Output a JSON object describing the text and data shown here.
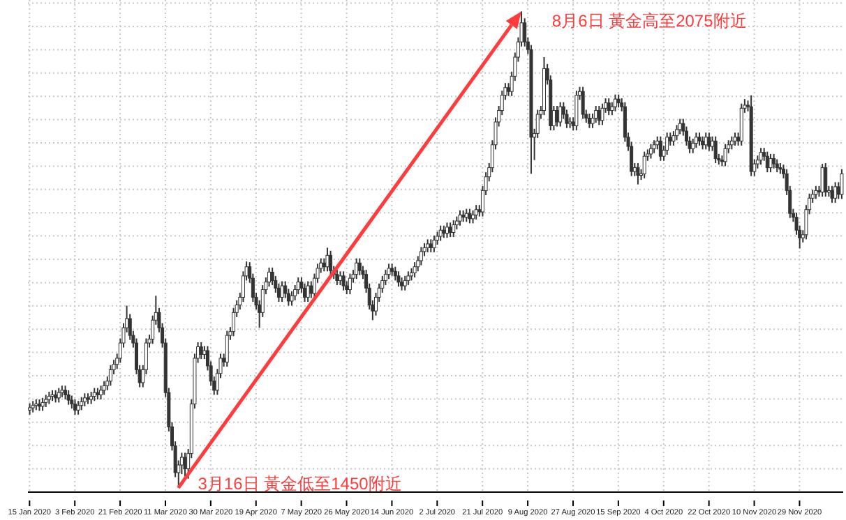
{
  "chart_data": {
    "type": "candlestick",
    "color": "#333333",
    "grid": true,
    "tick_labels": "x",
    "annotations": [
      "8月6日 黃金高至2075附近",
      "3月16日 黃金低至1450附近"
    ],
    "categories": [
      "15 Jan 2020",
      null,
      null,
      null,
      null,
      null,
      null,
      null,
      null,
      null,
      null,
      null,
      null,
      null,
      "3 Feb 2020",
      null,
      null,
      null,
      null,
      null,
      null,
      null,
      null,
      null,
      null,
      null,
      null,
      null,
      "21 Feb 2020",
      null,
      null,
      null,
      null,
      null,
      null,
      null,
      null,
      null,
      null,
      null,
      null,
      null,
      "11 Mar 2020",
      null,
      null,
      null,
      null,
      null,
      null,
      null,
      null,
      null,
      null,
      null,
      null,
      null,
      "30 Mar 2020",
      null,
      null,
      null,
      null,
      null,
      null,
      null,
      null,
      null,
      null,
      null,
      null,
      null,
      "19 Apr 2020",
      null,
      null,
      null,
      null,
      null,
      null,
      null,
      null,
      null,
      null,
      null,
      null,
      null,
      "7 May 2020",
      null,
      null,
      null,
      null,
      null,
      null,
      null,
      null,
      null,
      null,
      null,
      null,
      null,
      "26 May 2020",
      null,
      null,
      null,
      null,
      null,
      null,
      null,
      null,
      null,
      null,
      null,
      null,
      null,
      "14 Jun 2020",
      null,
      null,
      null,
      null,
      null,
      null,
      null,
      null,
      null,
      null,
      null,
      null,
      null,
      "2 Jul 2020",
      null,
      null,
      null,
      null,
      null,
      null,
      null,
      null,
      null,
      null,
      null,
      null,
      null,
      "21 Jul 2020",
      null,
      null,
      null,
      null,
      null,
      null,
      null,
      null,
      null,
      null,
      null,
      null,
      null,
      "9 Aug 2020",
      null,
      null,
      null,
      null,
      null,
      null,
      null,
      null,
      null,
      null,
      null,
      null,
      null,
      "27 Aug 2020",
      null,
      null,
      null,
      null,
      null,
      null,
      null,
      null,
      null,
      null,
      null,
      null,
      null,
      "15 Sep 2020",
      null,
      null,
      null,
      null,
      null,
      null,
      null,
      null,
      null,
      null,
      null,
      null,
      null,
      "4 Oct 2020",
      null,
      null,
      null,
      null,
      null,
      null,
      null,
      null,
      null,
      null,
      null,
      null,
      null,
      "22 Oct 2020",
      null,
      null,
      null,
      null,
      null,
      null,
      null,
      null,
      null,
      null,
      null,
      null,
      null,
      "10 Nov 2020",
      null,
      null,
      null,
      null,
      null,
      null,
      null,
      null,
      null,
      null,
      null,
      null,
      null,
      "29 Nov 2020",
      null,
      null,
      null,
      null,
      null,
      null,
      null,
      null,
      null,
      null,
      null,
      null,
      null
    ],
    "ohlc": [
      [
        1552,
        1561,
        1546,
        1555
      ],
      [
        1555,
        1564,
        1549,
        1558
      ],
      [
        1558,
        1566,
        1552,
        1560
      ],
      [
        1560,
        1566,
        1551,
        1557
      ],
      [
        1557,
        1568,
        1551,
        1562
      ],
      [
        1562,
        1572,
        1556,
        1566
      ],
      [
        1566,
        1576,
        1560,
        1570
      ],
      [
        1570,
        1578,
        1564,
        1572
      ],
      [
        1572,
        1578,
        1562,
        1568
      ],
      [
        1568,
        1581,
        1562,
        1575
      ],
      [
        1575,
        1584,
        1569,
        1578
      ],
      [
        1578,
        1584,
        1566,
        1572
      ],
      [
        1572,
        1578,
        1559,
        1565
      ],
      [
        1565,
        1571,
        1554,
        1560
      ],
      [
        1560,
        1566,
        1546,
        1552
      ],
      [
        1552,
        1564,
        1546,
        1558
      ],
      [
        1558,
        1569,
        1552,
        1563
      ],
      [
        1563,
        1574,
        1557,
        1568
      ],
      [
        1568,
        1574,
        1560,
        1566
      ],
      [
        1566,
        1576,
        1560,
        1570
      ],
      [
        1570,
        1581,
        1564,
        1575
      ],
      [
        1575,
        1581,
        1566,
        1572
      ],
      [
        1572,
        1584,
        1566,
        1578
      ],
      [
        1578,
        1590,
        1572,
        1584
      ],
      [
        1584,
        1596,
        1578,
        1590
      ],
      [
        1590,
        1611,
        1584,
        1605
      ],
      [
        1605,
        1618,
        1599,
        1612
      ],
      [
        1612,
        1626,
        1606,
        1620
      ],
      [
        1620,
        1646,
        1614,
        1640
      ],
      [
        1640,
        1666,
        1634,
        1660
      ],
      [
        1660,
        1689,
        1654,
        1672
      ],
      [
        1672,
        1678,
        1644,
        1650
      ],
      [
        1650,
        1656,
        1634,
        1640
      ],
      [
        1640,
        1646,
        1599,
        1605
      ],
      [
        1605,
        1611,
        1582,
        1588
      ],
      [
        1588,
        1611,
        1582,
        1605
      ],
      [
        1605,
        1646,
        1599,
        1640
      ],
      [
        1640,
        1651,
        1634,
        1645
      ],
      [
        1645,
        1676,
        1639,
        1670
      ],
      [
        1670,
        1702,
        1664,
        1680
      ],
      [
        1680,
        1686,
        1654,
        1660
      ],
      [
        1660,
        1666,
        1634,
        1640
      ],
      [
        1640,
        1646,
        1569,
        1575
      ],
      [
        1575,
        1581,
        1524,
        1530
      ],
      [
        1530,
        1536,
        1499,
        1505
      ],
      [
        1505,
        1511,
        1464,
        1470
      ],
      [
        1470,
        1486,
        1450,
        1480
      ],
      [
        1480,
        1496,
        1468,
        1490
      ],
      [
        1490,
        1496,
        1465,
        1475
      ],
      [
        1475,
        1501,
        1462,
        1495
      ],
      [
        1495,
        1566,
        1489,
        1560
      ],
      [
        1560,
        1626,
        1554,
        1620
      ],
      [
        1620,
        1641,
        1614,
        1635
      ],
      [
        1635,
        1641,
        1619,
        1625
      ],
      [
        1625,
        1636,
        1619,
        1630
      ],
      [
        1630,
        1636,
        1604,
        1610
      ],
      [
        1610,
        1616,
        1584,
        1590
      ],
      [
        1590,
        1596,
        1572,
        1578
      ],
      [
        1578,
        1606,
        1572,
        1600
      ],
      [
        1600,
        1626,
        1594,
        1620
      ],
      [
        1620,
        1626,
        1609,
        1615
      ],
      [
        1615,
        1656,
        1609,
        1650
      ],
      [
        1650,
        1661,
        1644,
        1655
      ],
      [
        1655,
        1686,
        1649,
        1680
      ],
      [
        1680,
        1696,
        1674,
        1690
      ],
      [
        1690,
        1706,
        1684,
        1700
      ],
      [
        1700,
        1734,
        1694,
        1728
      ],
      [
        1728,
        1747,
        1722,
        1740
      ],
      [
        1740,
        1746,
        1719,
        1725
      ],
      [
        1725,
        1731,
        1694,
        1700
      ],
      [
        1700,
        1706,
        1684,
        1690
      ],
      [
        1690,
        1696,
        1660,
        1680
      ],
      [
        1680,
        1716,
        1674,
        1710
      ],
      [
        1710,
        1726,
        1704,
        1720
      ],
      [
        1720,
        1739,
        1714,
        1733
      ],
      [
        1733,
        1739,
        1716,
        1722
      ],
      [
        1722,
        1728,
        1706,
        1712
      ],
      [
        1712,
        1718,
        1694,
        1700
      ],
      [
        1700,
        1721,
        1694,
        1715
      ],
      [
        1715,
        1721,
        1699,
        1705
      ],
      [
        1705,
        1711,
        1689,
        1695
      ],
      [
        1695,
        1708,
        1689,
        1702
      ],
      [
        1702,
        1716,
        1696,
        1710
      ],
      [
        1710,
        1726,
        1704,
        1720
      ],
      [
        1720,
        1726,
        1706,
        1712
      ],
      [
        1712,
        1718,
        1694,
        1700
      ],
      [
        1700,
        1721,
        1694,
        1715
      ],
      [
        1715,
        1721,
        1699,
        1705
      ],
      [
        1705,
        1731,
        1699,
        1725
      ],
      [
        1725,
        1744,
        1719,
        1738
      ],
      [
        1738,
        1751,
        1732,
        1745
      ],
      [
        1745,
        1751,
        1734,
        1740
      ],
      [
        1740,
        1765,
        1734,
        1755
      ],
      [
        1755,
        1761,
        1729,
        1735
      ],
      [
        1735,
        1741,
        1724,
        1730
      ],
      [
        1730,
        1736,
        1716,
        1722
      ],
      [
        1722,
        1734,
        1716,
        1728
      ],
      [
        1728,
        1734,
        1709,
        1715
      ],
      [
        1715,
        1721,
        1704,
        1710
      ],
      [
        1710,
        1731,
        1704,
        1725
      ],
      [
        1725,
        1736,
        1719,
        1730
      ],
      [
        1730,
        1751,
        1724,
        1745
      ],
      [
        1745,
        1751,
        1729,
        1735
      ],
      [
        1735,
        1741,
        1724,
        1730
      ],
      [
        1730,
        1736,
        1706,
        1712
      ],
      [
        1712,
        1718,
        1684,
        1690
      ],
      [
        1690,
        1696,
        1670,
        1682
      ],
      [
        1682,
        1706,
        1676,
        1700
      ],
      [
        1700,
        1718,
        1694,
        1712
      ],
      [
        1712,
        1728,
        1706,
        1722
      ],
      [
        1722,
        1736,
        1716,
        1730
      ],
      [
        1730,
        1744,
        1724,
        1738
      ],
      [
        1738,
        1744,
        1728,
        1734
      ],
      [
        1734,
        1740,
        1722,
        1728
      ],
      [
        1728,
        1734,
        1714,
        1720
      ],
      [
        1720,
        1726,
        1709,
        1715
      ],
      [
        1715,
        1728,
        1709,
        1722
      ],
      [
        1722,
        1734,
        1716,
        1728
      ],
      [
        1728,
        1738,
        1722,
        1732
      ],
      [
        1732,
        1746,
        1726,
        1740
      ],
      [
        1740,
        1754,
        1734,
        1748
      ],
      [
        1748,
        1766,
        1742,
        1760
      ],
      [
        1760,
        1771,
        1754,
        1765
      ],
      [
        1765,
        1776,
        1759,
        1770
      ],
      [
        1770,
        1776,
        1759,
        1765
      ],
      [
        1765,
        1781,
        1759,
        1775
      ],
      [
        1775,
        1786,
        1769,
        1780
      ],
      [
        1780,
        1794,
        1774,
        1788
      ],
      [
        1788,
        1794,
        1778,
        1784
      ],
      [
        1784,
        1798,
        1778,
        1792
      ],
      [
        1792,
        1798,
        1779,
        1785
      ],
      [
        1785,
        1801,
        1779,
        1795
      ],
      [
        1795,
        1806,
        1789,
        1800
      ],
      [
        1800,
        1814,
        1794,
        1808
      ],
      [
        1808,
        1814,
        1799,
        1805
      ],
      [
        1805,
        1816,
        1799,
        1810
      ],
      [
        1810,
        1816,
        1797,
        1803
      ],
      [
        1803,
        1814,
        1797,
        1808
      ],
      [
        1808,
        1821,
        1802,
        1815
      ],
      [
        1815,
        1821,
        1806,
        1812
      ],
      [
        1812,
        1846,
        1806,
        1840
      ],
      [
        1840,
        1864,
        1834,
        1858
      ],
      [
        1858,
        1876,
        1852,
        1870
      ],
      [
        1870,
        1906,
        1864,
        1900
      ],
      [
        1900,
        1936,
        1894,
        1930
      ],
      [
        1930,
        1951,
        1924,
        1945
      ],
      [
        1945,
        1971,
        1939,
        1965
      ],
      [
        1965,
        1981,
        1959,
        1975
      ],
      [
        1975,
        1981,
        1964,
        1970
      ],
      [
        1970,
        1996,
        1964,
        1990
      ],
      [
        1990,
        2021,
        1984,
        2015
      ],
      [
        2015,
        2041,
        2009,
        2035
      ],
      [
        2035,
        2075,
        2029,
        2060
      ],
      [
        2060,
        2066,
        2029,
        2035
      ],
      [
        2035,
        2041,
        2019,
        2025
      ],
      [
        2025,
        2031,
        1862,
        1910
      ],
      [
        1910,
        1921,
        1880,
        1915
      ],
      [
        1915,
        1946,
        1909,
        1940
      ],
      [
        1940,
        1951,
        1934,
        1945
      ],
      [
        1945,
        2015,
        1939,
        2000
      ],
      [
        2000,
        2006,
        1979,
        1985
      ],
      [
        1985,
        1991,
        1919,
        1925
      ],
      [
        1925,
        1951,
        1919,
        1945
      ],
      [
        1945,
        1951,
        1924,
        1930
      ],
      [
        1930,
        1956,
        1924,
        1950
      ],
      [
        1950,
        1956,
        1934,
        1940
      ],
      [
        1940,
        1946,
        1922,
        1928
      ],
      [
        1928,
        1936,
        1922,
        1930
      ],
      [
        1930,
        1936,
        1919,
        1925
      ],
      [
        1925,
        1971,
        1919,
        1965
      ],
      [
        1965,
        1976,
        1959,
        1970
      ],
      [
        1970,
        1976,
        1934,
        1940
      ],
      [
        1940,
        1946,
        1929,
        1935
      ],
      [
        1935,
        1941,
        1922,
        1928
      ],
      [
        1928,
        1941,
        1922,
        1935
      ],
      [
        1935,
        1951,
        1929,
        1945
      ],
      [
        1945,
        1951,
        1926,
        1932
      ],
      [
        1932,
        1954,
        1926,
        1948
      ],
      [
        1948,
        1961,
        1942,
        1955
      ],
      [
        1955,
        1961,
        1939,
        1945
      ],
      [
        1945,
        1956,
        1939,
        1950
      ],
      [
        1950,
        1966,
        1944,
        1960
      ],
      [
        1960,
        1966,
        1949,
        1955
      ],
      [
        1955,
        1961,
        1944,
        1950
      ],
      [
        1950,
        1956,
        1904,
        1910
      ],
      [
        1910,
        1916,
        1892,
        1898
      ],
      [
        1898,
        1904,
        1859,
        1865
      ],
      [
        1865,
        1876,
        1859,
        1870
      ],
      [
        1870,
        1876,
        1848,
        1860
      ],
      [
        1860,
        1868,
        1854,
        1862
      ],
      [
        1862,
        1891,
        1856,
        1885
      ],
      [
        1885,
        1894,
        1879,
        1888
      ],
      [
        1888,
        1901,
        1882,
        1895
      ],
      [
        1895,
        1906,
        1889,
        1900
      ],
      [
        1900,
        1911,
        1894,
        1905
      ],
      [
        1905,
        1911,
        1879,
        1885
      ],
      [
        1885,
        1899,
        1879,
        1893
      ],
      [
        1893,
        1916,
        1887,
        1910
      ],
      [
        1910,
        1916,
        1899,
        1905
      ],
      [
        1905,
        1918,
        1899,
        1912
      ],
      [
        1912,
        1926,
        1906,
        1920
      ],
      [
        1920,
        1934,
        1914,
        1928
      ],
      [
        1928,
        1934,
        1912,
        1918
      ],
      [
        1918,
        1924,
        1899,
        1905
      ],
      [
        1905,
        1911,
        1889,
        1895
      ],
      [
        1895,
        1908,
        1889,
        1902
      ],
      [
        1902,
        1916,
        1896,
        1910
      ],
      [
        1910,
        1916,
        1899,
        1905
      ],
      [
        1905,
        1911,
        1894,
        1900
      ],
      [
        1900,
        1916,
        1894,
        1910
      ],
      [
        1910,
        1916,
        1892,
        1898
      ],
      [
        1898,
        1911,
        1892,
        1905
      ],
      [
        1905,
        1911,
        1876,
        1882
      ],
      [
        1882,
        1888,
        1874,
        1880
      ],
      [
        1880,
        1886,
        1872,
        1878
      ],
      [
        1878,
        1901,
        1872,
        1895
      ],
      [
        1895,
        1906,
        1889,
        1900
      ],
      [
        1900,
        1911,
        1894,
        1905
      ],
      [
        1905,
        1916,
        1899,
        1910
      ],
      [
        1910,
        1916,
        1899,
        1905
      ],
      [
        1905,
        1954,
        1899,
        1948
      ],
      [
        1948,
        1960,
        1942,
        1952
      ],
      [
        1952,
        1958,
        1944,
        1950
      ],
      [
        1950,
        1965,
        1859,
        1865
      ],
      [
        1865,
        1881,
        1859,
        1875
      ],
      [
        1875,
        1886,
        1869,
        1880
      ],
      [
        1880,
        1896,
        1874,
        1890
      ],
      [
        1890,
        1896,
        1879,
        1885
      ],
      [
        1885,
        1891,
        1864,
        1870
      ],
      [
        1870,
        1888,
        1864,
        1882
      ],
      [
        1882,
        1888,
        1869,
        1875
      ],
      [
        1875,
        1881,
        1864,
        1870
      ],
      [
        1870,
        1876,
        1862,
        1868
      ],
      [
        1868,
        1874,
        1856,
        1862
      ],
      [
        1862,
        1868,
        1834,
        1840
      ],
      [
        1840,
        1846,
        1804,
        1810
      ],
      [
        1810,
        1816,
        1799,
        1805
      ],
      [
        1805,
        1811,
        1782,
        1788
      ],
      [
        1788,
        1794,
        1764,
        1778
      ],
      [
        1778,
        1788,
        1772,
        1782
      ],
      [
        1782,
        1821,
        1776,
        1815
      ],
      [
        1815,
        1836,
        1809,
        1830
      ],
      [
        1830,
        1841,
        1824,
        1835
      ],
      [
        1835,
        1846,
        1829,
        1840
      ],
      [
        1840,
        1846,
        1832,
        1838
      ],
      [
        1838,
        1875,
        1832,
        1870
      ],
      [
        1870,
        1876,
        1832,
        1838
      ],
      [
        1838,
        1846,
        1832,
        1840
      ],
      [
        1840,
        1846,
        1824,
        1830
      ],
      [
        1830,
        1851,
        1824,
        1845
      ],
      [
        1845,
        1851,
        1829,
        1835
      ],
      [
        1835,
        1868,
        1829,
        1862
      ]
    ]
  }
}
